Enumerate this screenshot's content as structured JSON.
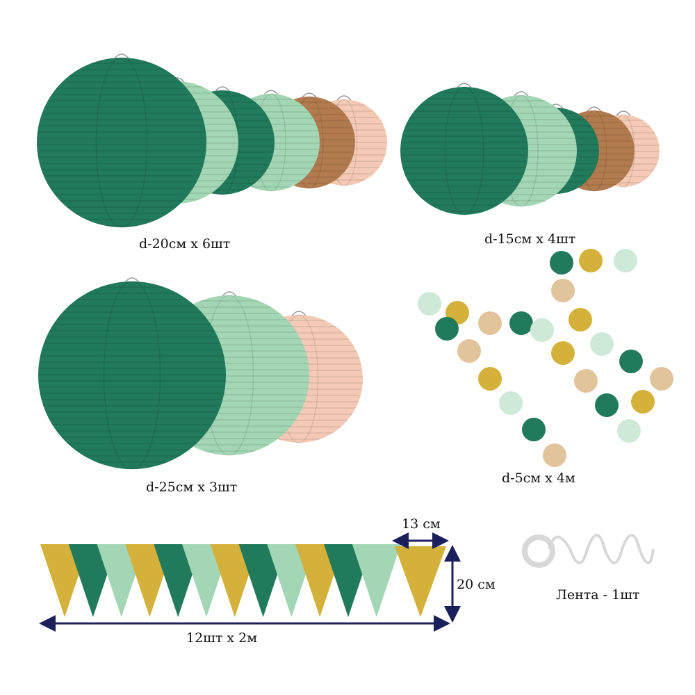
{
  "colors": {
    "dark_green": "#217a5b",
    "light_green": "#a3d6b4",
    "brown": "#b27b4f",
    "peach": "#f4cab6",
    "gold": "#d4b13a",
    "mint": "#cfe9d8",
    "tan": "#e2c49c",
    "arrow": "#1b1f5c",
    "ribbon": "#d8d8d8"
  },
  "labels": {
    "lanterns_20": "d-20см x 6шт",
    "lanterns_15": "d-15см x 4шт",
    "lanterns_25": "d-25см x 3шт",
    "garland_dots": "d-5см x 4м",
    "flag_width": "13 см",
    "flag_height": "20 см",
    "bunting": "12шт x 2м",
    "ribbon": "Лента - 1шт"
  }
}
